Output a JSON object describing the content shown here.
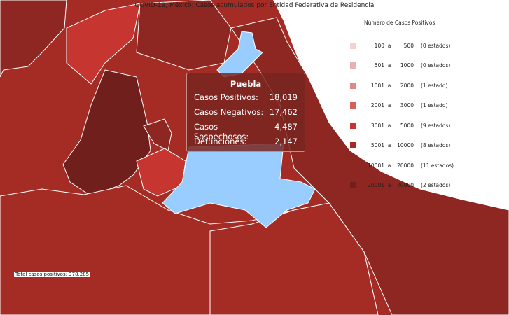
{
  "title": "COVID-19, México: Casos acumulados por Entidad Federativa de Residencia",
  "legend": {
    "title": "Número de Casos Positivos",
    "separator": "a",
    "items": [
      {
        "min": "100",
        "max": "500",
        "count": "(0 estados)",
        "color": "#f3d3d2"
      },
      {
        "min": "501",
        "max": "1000",
        "count": "(0 estados)",
        "color": "#e8b0ae"
      },
      {
        "min": "1001",
        "max": "2000",
        "count": "(1 estado)",
        "color": "#de8a84"
      },
      {
        "min": "2001",
        "max": "3000",
        "count": "(1 estado)",
        "color": "#d3625b"
      },
      {
        "min": "3001",
        "max": "5000",
        "count": "(9 estados)",
        "color": "#c63530"
      },
      {
        "min": "5001",
        "max": "10000",
        "count": "(8 estados)",
        "color": "#a52b25"
      },
      {
        "min": "10001",
        "max": "20000",
        "count": "(11 estados)",
        "color": "#8e2621"
      },
      {
        "min": "20001",
        "max": "70000",
        "count": "(2 estados)",
        "color": "#701f1c"
      }
    ]
  },
  "tooltip": {
    "state": "Puebla",
    "rows": [
      {
        "label": "Casos Positivos:",
        "value": "18,019"
      },
      {
        "label": "Casos Negativos:",
        "value": "17,462"
      },
      {
        "label": "Casos Sospechosos:",
        "value": "4,487"
      },
      {
        "label": "Defunciones:",
        "value": "2,147"
      }
    ]
  },
  "total": "Total casos positivos: 378,285"
}
